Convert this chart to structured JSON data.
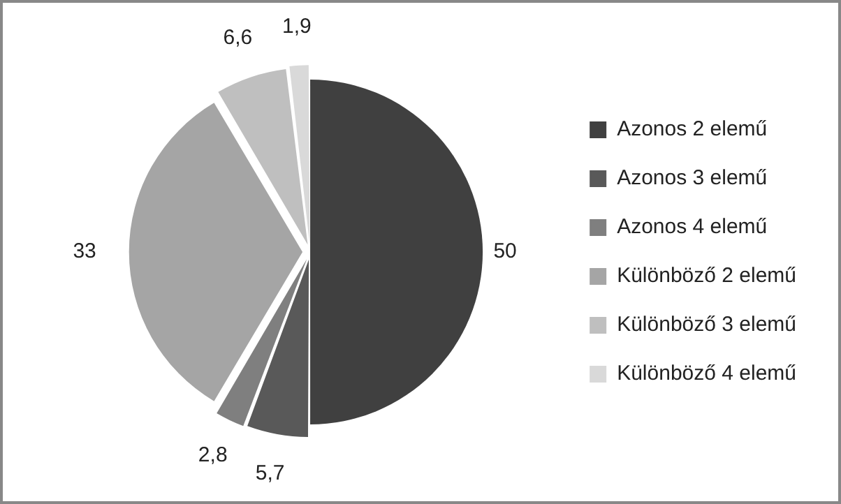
{
  "chart_data": {
    "type": "pie",
    "categories": [
      "Azonos 2 elemű",
      "Azonos 3 elemű",
      "Azonos 4 elemű",
      "Különböző 2 elemű",
      "Különböző 3 elemű",
      "Különböző 4 elemű"
    ],
    "values": [
      50,
      5.7,
      2.8,
      33,
      6.6,
      1.9
    ],
    "colors": [
      "#404040",
      "#595959",
      "#7f7f7f",
      "#a5a5a5",
      "#bfbfbf",
      "#d9d9d9"
    ],
    "value_labels": [
      "50",
      "5,7",
      "2,8",
      "33",
      "6,6",
      "1,9"
    ],
    "legend": "right"
  }
}
